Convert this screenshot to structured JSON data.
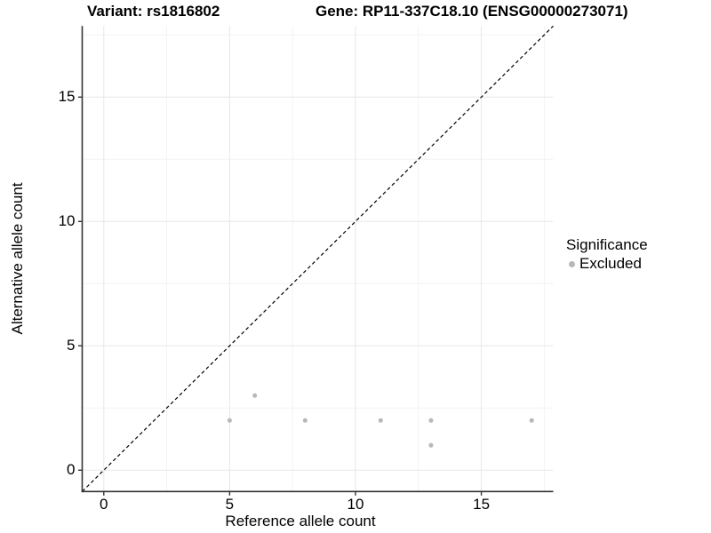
{
  "chart_data": {
    "type": "scatter",
    "title_left": "Variant: rs1816802",
    "title_right": "Gene: RP11-337C18.10 (ENSG00000273071)",
    "xlabel": "Reference allele count",
    "ylabel": "Alternative allele count",
    "xlim": [
      -0.857,
      17.857
    ],
    "ylim": [
      -0.857,
      17.857
    ],
    "x_ticks": [
      0,
      5,
      10,
      15
    ],
    "y_ticks": [
      0,
      5,
      10,
      15
    ],
    "x_minor_ticks": [
      2.5,
      7.5,
      12.5,
      17.5
    ],
    "y_minor_ticks": [
      2.5,
      7.5,
      12.5,
      17.5
    ],
    "grid": "major and minor, light gray on white",
    "reference_line": {
      "equation": "y = x",
      "style": "dashed",
      "color": "#000000"
    },
    "series": [
      {
        "name": "Excluded",
        "marker": "circle",
        "color": "#b8b8b8",
        "points": [
          [
            5,
            2
          ],
          [
            6,
            3
          ],
          [
            8,
            2
          ],
          [
            11,
            2
          ],
          [
            13,
            2
          ],
          [
            13,
            1
          ],
          [
            17,
            2
          ]
        ]
      }
    ],
    "legend": {
      "title": "Significance",
      "position": "right",
      "entries": [
        {
          "label": "Excluded",
          "color": "#b8b8b8"
        }
      ]
    }
  },
  "colors": {
    "background": "#ffffff",
    "grid_major": "#e7e7e7",
    "grid_minor": "#f3f3f3",
    "axis_line": "#333333",
    "tick_mark": "#333333",
    "point": "#b8b8b8",
    "diagonal": "#000000",
    "text": "#000000"
  }
}
